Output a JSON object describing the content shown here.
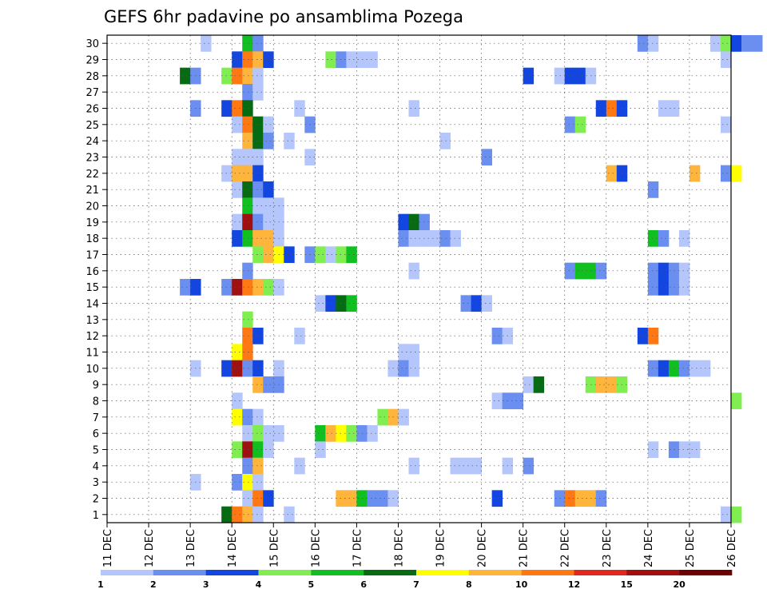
{
  "chart_data": {
    "type": "heatmap",
    "title": "GEFS 6hr padavine po ansamblima Pozega",
    "xlabel": "",
    "ylabel": "",
    "x_tick_labels": [
      "11 DEC",
      "12 DEC",
      "13 DEC",
      "14 DEC",
      "15 DEC",
      "16 DEC",
      "17 DEC",
      "18 DEC",
      "19 DEC",
      "20 DEC",
      "21 DEC",
      "22 DEC",
      "23 DEC",
      "24 DEC",
      "25 DEC",
      "26 DEC"
    ],
    "y_tick_labels": [
      "1",
      "2",
      "3",
      "4",
      "5",
      "6",
      "7",
      "8",
      "9",
      "10",
      "11",
      "12",
      "13",
      "14",
      "15",
      "16",
      "17",
      "18",
      "19",
      "20",
      "21",
      "22",
      "23",
      "24",
      "25",
      "26",
      "27",
      "28",
      "29",
      "30"
    ],
    "y_range": [
      1,
      30
    ],
    "steps_per_day": 4,
    "grid": true,
    "colorbar": {
      "labels": [
        "1",
        "2",
        "3",
        "4",
        "5",
        "6",
        "7",
        "8",
        "10",
        "12",
        "15",
        "20"
      ],
      "colors": [
        "#b4c6fb",
        "#6a8ff0",
        "#1346e0",
        "#80ee50",
        "#10c020",
        "#076b13",
        "#ffff00",
        "#ffb43c",
        "#ff7814",
        "#e0281e",
        "#a01010",
        "#6e0000"
      ]
    },
    "cells": [
      {
        "member": 30,
        "values": {
          "9": 1,
          "13": 5,
          "14": 2,
          "51": 2,
          "52": 1,
          "58": 1,
          "59": 4,
          "60": 3,
          "61": 2,
          "62": 2
        }
      },
      {
        "member": 29,
        "values": {
          "12": 3,
          "13": 11,
          "14": 8,
          "15": 3,
          "21": 4,
          "22": 2,
          "23": 1,
          "24": 1,
          "25": 1,
          "59": 1
        }
      },
      {
        "member": 28,
        "values": {
          "7": 6,
          "8": 2,
          "11": 4,
          "12": 10,
          "13": 8,
          "14": 1,
          "40": 3,
          "43": 1,
          "44": 3,
          "45": 3,
          "46": 1
        }
      },
      {
        "member": 27,
        "values": {
          "13": 2,
          "14": 1
        }
      },
      {
        "member": 26,
        "values": {
          "8": 2,
          "11": 3,
          "12": 11,
          "13": 6,
          "18": 1,
          "29": 1,
          "47": 3,
          "48": 11,
          "49": 3,
          "53": 1,
          "54": 1
        }
      },
      {
        "member": 25,
        "values": {
          "12": 1,
          "13": 10,
          "14": 6,
          "15": 1,
          "19": 2,
          "44": 2,
          "45": 4,
          "59": 1
        }
      },
      {
        "member": 24,
        "values": {
          "13": 9,
          "14": 6,
          "15": 2,
          "17": 1,
          "32": 1
        }
      },
      {
        "member": 23,
        "values": {
          "12": 1,
          "13": 1,
          "14": 1,
          "19": 1,
          "36": 2
        }
      },
      {
        "member": 22,
        "values": {
          "11": 1,
          "12": 9,
          "13": 8,
          "14": 3,
          "48": 9,
          "49": 3,
          "56": 8,
          "59": 2,
          "60": 7
        }
      },
      {
        "member": 21,
        "values": {
          "12": 1,
          "13": 6,
          "14": 2,
          "15": 3,
          "52": 2
        }
      },
      {
        "member": 20,
        "values": {
          "13": 5,
          "14": 1,
          "15": 1,
          "16": 1
        }
      },
      {
        "member": 19,
        "values": {
          "12": 1,
          "13": 15,
          "14": 2,
          "15": 1,
          "16": 1,
          "28": 3,
          "29": 6,
          "30": 2
        }
      },
      {
        "member": 18,
        "values": {
          "12": 3,
          "13": 5,
          "14": 8,
          "15": 9,
          "16": 1,
          "28": 2,
          "29": 1,
          "30": 1,
          "31": 1,
          "32": 2,
          "33": 1,
          "52": 5,
          "53": 2,
          "55": 1
        }
      },
      {
        "member": 17,
        "values": {
          "14": 4,
          "15": 9,
          "16": 7,
          "17": 3,
          "19": 2,
          "20": 4,
          "21": 1,
          "22": 4,
          "23": 5
        }
      },
      {
        "member": 16,
        "values": {
          "13": 2,
          "29": 1,
          "44": 2,
          "45": 5,
          "46": 5,
          "47": 2,
          "52": 2,
          "53": 3,
          "54": 2,
          "55": 1
        }
      },
      {
        "member": 15,
        "values": {
          "7": 2,
          "8": 3,
          "11": 2,
          "12": 15,
          "13": 11,
          "14": 9,
          "15": 4,
          "16": 1,
          "52": 2,
          "53": 3,
          "54": 2,
          "55": 1
        }
      },
      {
        "member": 14,
        "values": {
          "20": 1,
          "21": 3,
          "22": 6,
          "23": 5,
          "34": 2,
          "35": 3,
          "36": 1
        }
      },
      {
        "member": 13,
        "values": {
          "13": 4
        }
      },
      {
        "member": 12,
        "values": {
          "13": 10,
          "14": 3,
          "18": 1,
          "37": 2,
          "38": 1,
          "51": 3,
          "52": 11
        }
      },
      {
        "member": 11,
        "values": {
          "12": 7,
          "13": 11,
          "28": 1,
          "29": 1
        }
      },
      {
        "member": 10,
        "values": {
          "8": 1,
          "11": 3,
          "12": 15,
          "13": 2,
          "14": 3,
          "16": 1,
          "27": 1,
          "28": 2,
          "29": 1,
          "52": 2,
          "53": 3,
          "54": 5,
          "55": 2,
          "56": 1,
          "57": 1
        }
      },
      {
        "member": 9,
        "values": {
          "14": 9,
          "15": 2,
          "16": 2,
          "40": 1,
          "41": 6,
          "46": 4,
          "47": 8,
          "48": 9,
          "49": 4
        }
      },
      {
        "member": 8,
        "values": {
          "12": 1,
          "37": 1,
          "38": 2,
          "39": 2,
          "60": 4
        }
      },
      {
        "member": 7,
        "values": {
          "12": 7,
          "13": 2,
          "14": 1,
          "26": 4,
          "27": 8,
          "28": 1
        }
      },
      {
        "member": 6,
        "values": {
          "13": 1,
          "14": 4,
          "15": 1,
          "16": 1,
          "20": 5,
          "21": 8,
          "22": 7,
          "23": 4,
          "24": 2,
          "25": 1
        }
      },
      {
        "member": 5,
        "values": {
          "12": 4,
          "13": 15,
          "14": 5,
          "15": 1,
          "20": 1,
          "52": 1,
          "54": 2,
          "55": 1,
          "56": 1
        }
      },
      {
        "member": 4,
        "values": {
          "13": 2,
          "14": 9,
          "18": 1,
          "29": 1,
          "33": 1,
          "34": 1,
          "35": 1,
          "38": 1,
          "40": 2
        }
      },
      {
        "member": 3,
        "values": {
          "8": 1,
          "12": 2,
          "13": 7,
          "14": 1
        }
      },
      {
        "member": 2,
        "values": {
          "13": 1,
          "14": 11,
          "15": 3,
          "22": 8,
          "23": 8,
          "24": 5,
          "25": 2,
          "26": 2,
          "27": 1,
          "37": 3,
          "43": 2,
          "44": 11,
          "45": 9,
          "46": 8,
          "47": 2
        }
      },
      {
        "member": 1,
        "values": {
          "11": 6,
          "12": 11,
          "13": 9,
          "14": 1,
          "17": 1,
          "59": 1,
          "60": 4
        }
      }
    ]
  }
}
